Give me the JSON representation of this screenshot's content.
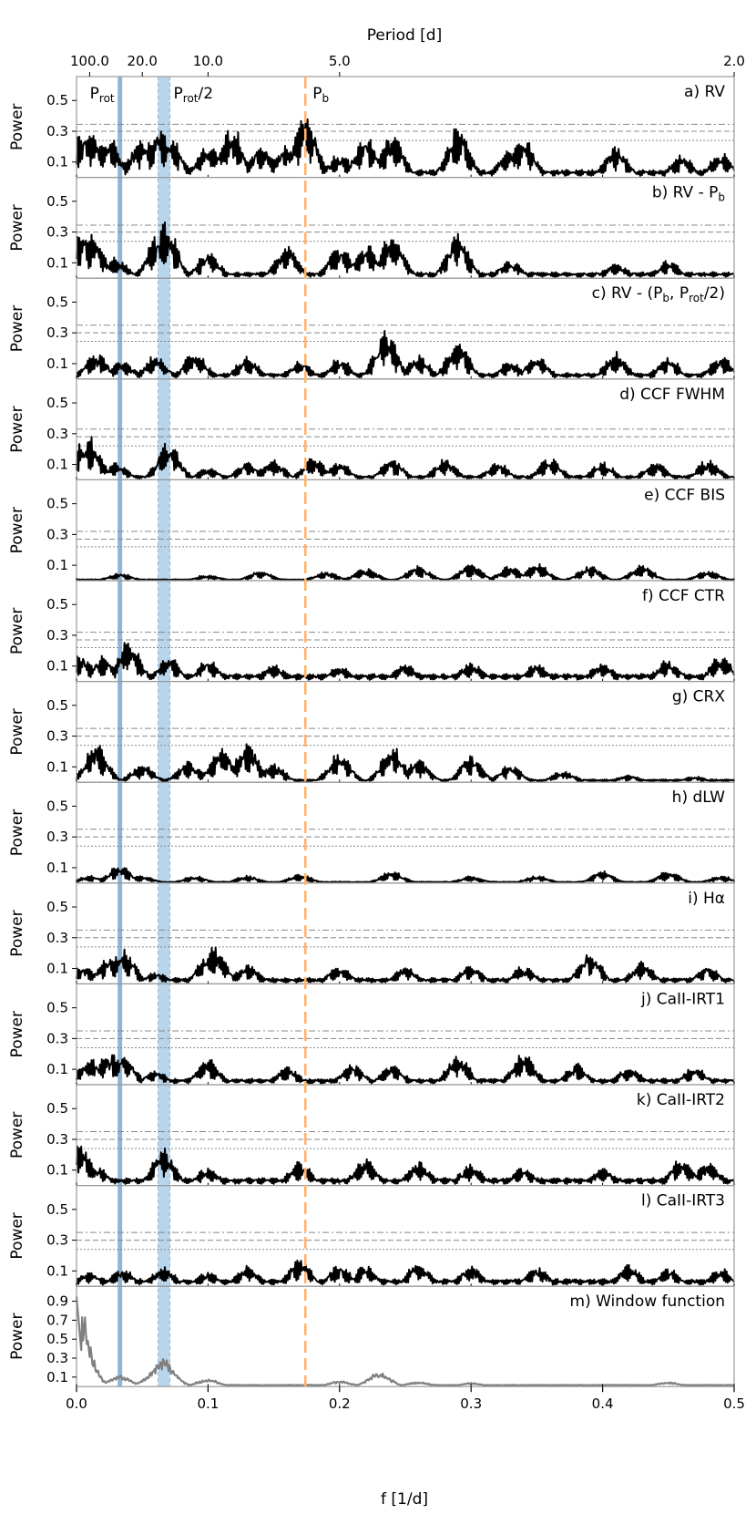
{
  "colors": {
    "rotation": "#8fb6d8",
    "half_rotation_band": "#b9d5ec",
    "planet": "#ffb36b",
    "series": "#000000",
    "window": "#808080",
    "fap_lines": "#888888"
  },
  "chart_data": {
    "type": "line",
    "title": "",
    "xlabel": "f [1/d]",
    "top_axis_label": "Period [d]",
    "xlim": [
      0.0,
      0.5
    ],
    "x_ticks": [
      "0.0",
      "0.1",
      "0.2",
      "0.3",
      "0.4",
      "0.5"
    ],
    "top_ticks": [
      {
        "label": "100.0",
        "period": 100
      },
      {
        "label": "20.0",
        "period": 20
      },
      {
        "label": "10.0",
        "period": 10
      },
      {
        "label": "5.0",
        "period": 5
      },
      {
        "label": "2.0",
        "period": 2
      }
    ],
    "markers": [
      {
        "name": "P_rot",
        "label_main": "P",
        "label_sub": "rot",
        "label_suffix": "",
        "frequency": 0.033,
        "style": "solid-band"
      },
      {
        "name": "P_rot/2",
        "label_main": "P",
        "label_sub": "rot",
        "label_suffix": "/2",
        "frequency_range": [
          0.062,
          0.071
        ],
        "style": "shaded-band"
      },
      {
        "name": "P_b",
        "label_main": "P",
        "label_sub": "b",
        "label_suffix": "",
        "frequency": 0.174,
        "style": "dashed"
      }
    ],
    "panels": [
      {
        "id": "a",
        "label": "a) RV",
        "ylabel": "Power",
        "ylim": [
          0,
          0.62
        ],
        "yticks": [
          "0.5",
          "0.3",
          "0.1"
        ],
        "fap": [
          0.345,
          0.3,
          0.24
        ],
        "baseline": 0.05,
        "peaks": [
          [
            0.005,
            0.3
          ],
          [
            0.012,
            0.32
          ],
          [
            0.024,
            0.28
          ],
          [
            0.05,
            0.28
          ],
          [
            0.063,
            0.33
          ],
          [
            0.071,
            0.28
          ],
          [
            0.1,
            0.22
          ],
          [
            0.118,
            0.35
          ],
          [
            0.14,
            0.22
          ],
          [
            0.16,
            0.24
          ],
          [
            0.174,
            0.46
          ],
          [
            0.2,
            0.16
          ],
          [
            0.22,
            0.28
          ],
          [
            0.24,
            0.3
          ],
          [
            0.29,
            0.35
          ],
          [
            0.33,
            0.2
          ],
          [
            0.34,
            0.26
          ],
          [
            0.41,
            0.22
          ],
          [
            0.46,
            0.15
          ],
          [
            0.49,
            0.17
          ]
        ]
      },
      {
        "id": "b",
        "label": "b) RV - P",
        "label_sub": "b",
        "label_suffix": "",
        "ylabel": "Power",
        "ylim": [
          0,
          0.62
        ],
        "yticks": [
          "0.5",
          "0.3",
          "0.1"
        ],
        "fap": [
          0.345,
          0.3,
          0.24
        ],
        "baseline": 0.04,
        "peaks": [
          [
            0.003,
            0.33
          ],
          [
            0.012,
            0.3
          ],
          [
            0.03,
            0.14
          ],
          [
            0.063,
            0.33
          ],
          [
            0.068,
            0.37
          ],
          [
            0.1,
            0.18
          ],
          [
            0.16,
            0.22
          ],
          [
            0.2,
            0.22
          ],
          [
            0.22,
            0.24
          ],
          [
            0.24,
            0.3
          ],
          [
            0.29,
            0.3
          ],
          [
            0.33,
            0.12
          ],
          [
            0.41,
            0.1
          ],
          [
            0.45,
            0.12
          ]
        ]
      },
      {
        "id": "c",
        "label": "c) RV - (P",
        "label_sub": "b",
        "label_suffix": ", P",
        "label_sub2": "rot",
        "label_suffix2": "/2)",
        "ylabel": "Power",
        "ylim": [
          0,
          0.62
        ],
        "yticks": [
          "0.5",
          "0.3",
          "0.1"
        ],
        "fap": [
          0.35,
          0.3,
          0.245
        ],
        "baseline": 0.04,
        "peaks": [
          [
            0.015,
            0.19
          ],
          [
            0.035,
            0.12
          ],
          [
            0.06,
            0.16
          ],
          [
            0.09,
            0.18
          ],
          [
            0.13,
            0.15
          ],
          [
            0.17,
            0.12
          ],
          [
            0.2,
            0.14
          ],
          [
            0.235,
            0.33
          ],
          [
            0.26,
            0.16
          ],
          [
            0.29,
            0.26
          ],
          [
            0.33,
            0.12
          ],
          [
            0.35,
            0.16
          ],
          [
            0.41,
            0.18
          ],
          [
            0.45,
            0.15
          ],
          [
            0.49,
            0.16
          ]
        ]
      },
      {
        "id": "d",
        "label": "d) CCF FWHM",
        "ylabel": "Power",
        "ylim": [
          0,
          0.62
        ],
        "yticks": [
          "0.5",
          "0.3",
          "0.1"
        ],
        "fap": [
          0.33,
          0.28,
          0.22
        ],
        "baseline": 0.03,
        "peaks": [
          [
            0.002,
            0.25
          ],
          [
            0.01,
            0.29
          ],
          [
            0.03,
            0.12
          ],
          [
            0.07,
            0.26
          ],
          [
            0.1,
            0.08
          ],
          [
            0.13,
            0.12
          ],
          [
            0.15,
            0.14
          ],
          [
            0.18,
            0.15
          ],
          [
            0.2,
            0.12
          ],
          [
            0.24,
            0.14
          ],
          [
            0.28,
            0.14
          ],
          [
            0.32,
            0.12
          ],
          [
            0.36,
            0.15
          ],
          [
            0.4,
            0.12
          ],
          [
            0.44,
            0.12
          ],
          [
            0.48,
            0.14
          ]
        ]
      },
      {
        "id": "e",
        "label": "e) CCF BIS",
        "ylabel": "Power",
        "ylim": [
          0,
          0.62
        ],
        "yticks": [
          "0.5",
          "0.3",
          "0.1"
        ],
        "fap": [
          0.32,
          0.27,
          0.22
        ],
        "baseline": 0.01,
        "peaks": [
          [
            0.033,
            0.05
          ],
          [
            0.1,
            0.04
          ],
          [
            0.14,
            0.07
          ],
          [
            0.19,
            0.06
          ],
          [
            0.22,
            0.08
          ],
          [
            0.26,
            0.1
          ],
          [
            0.3,
            0.11
          ],
          [
            0.33,
            0.1
          ],
          [
            0.35,
            0.12
          ],
          [
            0.39,
            0.1
          ],
          [
            0.43,
            0.11
          ],
          [
            0.48,
            0.07
          ]
        ]
      },
      {
        "id": "f",
        "label": "f) CCF CTR",
        "ylabel": "Power",
        "ylim": [
          0,
          0.62
        ],
        "yticks": [
          "0.5",
          "0.3",
          "0.1"
        ],
        "fap": [
          0.32,
          0.27,
          0.22
        ],
        "baseline": 0.05,
        "peaks": [
          [
            0.003,
            0.18
          ],
          [
            0.02,
            0.17
          ],
          [
            0.04,
            0.28
          ],
          [
            0.07,
            0.17
          ],
          [
            0.1,
            0.15
          ],
          [
            0.15,
            0.11
          ],
          [
            0.2,
            0.1
          ],
          [
            0.25,
            0.12
          ],
          [
            0.3,
            0.13
          ],
          [
            0.35,
            0.12
          ],
          [
            0.4,
            0.13
          ],
          [
            0.45,
            0.15
          ],
          [
            0.49,
            0.18
          ]
        ]
      },
      {
        "id": "g",
        "label": "g) CRX",
        "ylabel": "Power",
        "ylim": [
          0,
          0.62
        ],
        "yticks": [
          "0.5",
          "0.3",
          "0.1"
        ],
        "fap": [
          0.35,
          0.3,
          0.24
        ],
        "baseline": 0.02,
        "peaks": [
          [
            0.015,
            0.26
          ],
          [
            0.05,
            0.12
          ],
          [
            0.085,
            0.14
          ],
          [
            0.11,
            0.24
          ],
          [
            0.13,
            0.27
          ],
          [
            0.15,
            0.12
          ],
          [
            0.2,
            0.2
          ],
          [
            0.24,
            0.24
          ],
          [
            0.26,
            0.16
          ],
          [
            0.3,
            0.18
          ],
          [
            0.33,
            0.12
          ],
          [
            0.37,
            0.08
          ],
          [
            0.42,
            0.05
          ],
          [
            0.47,
            0.04
          ]
        ]
      },
      {
        "id": "h",
        "label": "h) dLW",
        "ylabel": "Power",
        "ylim": [
          0,
          0.62
        ],
        "yticks": [
          "0.5",
          "0.3",
          "0.1"
        ],
        "fap": [
          0.35,
          0.3,
          0.24
        ],
        "baseline": 0.01,
        "peaks": [
          [
            0.01,
            0.05
          ],
          [
            0.033,
            0.12
          ],
          [
            0.05,
            0.05
          ],
          [
            0.09,
            0.05
          ],
          [
            0.13,
            0.05
          ],
          [
            0.17,
            0.06
          ],
          [
            0.24,
            0.08
          ],
          [
            0.3,
            0.05
          ],
          [
            0.35,
            0.05
          ],
          [
            0.4,
            0.08
          ],
          [
            0.45,
            0.08
          ],
          [
            0.49,
            0.05
          ]
        ]
      },
      {
        "id": "i",
        "label": "i) Hα",
        "ylabel": "Power",
        "ylim": [
          0,
          0.62
        ],
        "yticks": [
          "0.5",
          "0.3",
          "0.1"
        ],
        "fap": [
          0.35,
          0.3,
          0.24
        ],
        "baseline": 0.04,
        "peaks": [
          [
            0.005,
            0.12
          ],
          [
            0.025,
            0.2
          ],
          [
            0.036,
            0.23
          ],
          [
            0.06,
            0.08
          ],
          [
            0.1,
            0.2
          ],
          [
            0.105,
            0.26
          ],
          [
            0.13,
            0.13
          ],
          [
            0.2,
            0.12
          ],
          [
            0.25,
            0.12
          ],
          [
            0.3,
            0.13
          ],
          [
            0.34,
            0.12
          ],
          [
            0.39,
            0.22
          ],
          [
            0.43,
            0.15
          ],
          [
            0.48,
            0.12
          ]
        ]
      },
      {
        "id": "j",
        "label": "j) CaII-IRT1",
        "ylabel": "Power",
        "ylim": [
          0,
          0.62
        ],
        "yticks": [
          "0.5",
          "0.3",
          "0.1"
        ],
        "fap": [
          0.35,
          0.3,
          0.24
        ],
        "baseline": 0.04,
        "peaks": [
          [
            0.01,
            0.18
          ],
          [
            0.025,
            0.22
          ],
          [
            0.035,
            0.22
          ],
          [
            0.06,
            0.1
          ],
          [
            0.1,
            0.18
          ],
          [
            0.16,
            0.12
          ],
          [
            0.21,
            0.15
          ],
          [
            0.24,
            0.14
          ],
          [
            0.29,
            0.2
          ],
          [
            0.34,
            0.22
          ],
          [
            0.38,
            0.14
          ],
          [
            0.42,
            0.12
          ],
          [
            0.47,
            0.12
          ]
        ]
      },
      {
        "id": "k",
        "label": "k) CaII-IRT2",
        "ylabel": "Power",
        "ylim": [
          0,
          0.62
        ],
        "yticks": [
          "0.5",
          "0.3",
          "0.1"
        ],
        "fap": [
          0.35,
          0.3,
          0.24
        ],
        "baseline": 0.05,
        "peaks": [
          [
            0.002,
            0.3
          ],
          [
            0.015,
            0.14
          ],
          [
            0.066,
            0.25
          ],
          [
            0.1,
            0.12
          ],
          [
            0.17,
            0.16
          ],
          [
            0.22,
            0.19
          ],
          [
            0.26,
            0.16
          ],
          [
            0.3,
            0.14
          ],
          [
            0.34,
            0.12
          ],
          [
            0.4,
            0.12
          ],
          [
            0.46,
            0.18
          ],
          [
            0.48,
            0.17
          ]
        ]
      },
      {
        "id": "l",
        "label": "l) CaII-IRT3",
        "ylabel": "Power",
        "ylim": [
          0,
          0.62
        ],
        "yticks": [
          "0.5",
          "0.3",
          "0.1"
        ],
        "fap": [
          0.35,
          0.3,
          0.24
        ],
        "baseline": 0.05,
        "peaks": [
          [
            0.01,
            0.1
          ],
          [
            0.035,
            0.12
          ],
          [
            0.066,
            0.13
          ],
          [
            0.1,
            0.1
          ],
          [
            0.13,
            0.14
          ],
          [
            0.17,
            0.18
          ],
          [
            0.2,
            0.15
          ],
          [
            0.22,
            0.14
          ],
          [
            0.26,
            0.16
          ],
          [
            0.3,
            0.14
          ],
          [
            0.35,
            0.13
          ],
          [
            0.42,
            0.14
          ],
          [
            0.45,
            0.12
          ],
          [
            0.49,
            0.12
          ]
        ]
      },
      {
        "id": "m",
        "label": "m) Window function",
        "ylabel": "Power",
        "ylim": [
          0,
          1.0
        ],
        "yticks": [
          "0.9",
          "0.7",
          "0.5",
          "0.3",
          "0.1"
        ],
        "fap": [],
        "baseline": 0.02,
        "gray": true,
        "peaks": [
          [
            0.0005,
            0.95
          ],
          [
            0.003,
            0.6
          ],
          [
            0.01,
            0.15
          ],
          [
            0.033,
            0.12
          ],
          [
            0.06,
            0.15
          ],
          [
            0.066,
            0.3
          ],
          [
            0.1,
            0.08
          ],
          [
            0.2,
            0.06
          ],
          [
            0.23,
            0.15
          ],
          [
            0.26,
            0.05
          ],
          [
            0.3,
            0.04
          ],
          [
            0.45,
            0.05
          ]
        ]
      }
    ]
  }
}
